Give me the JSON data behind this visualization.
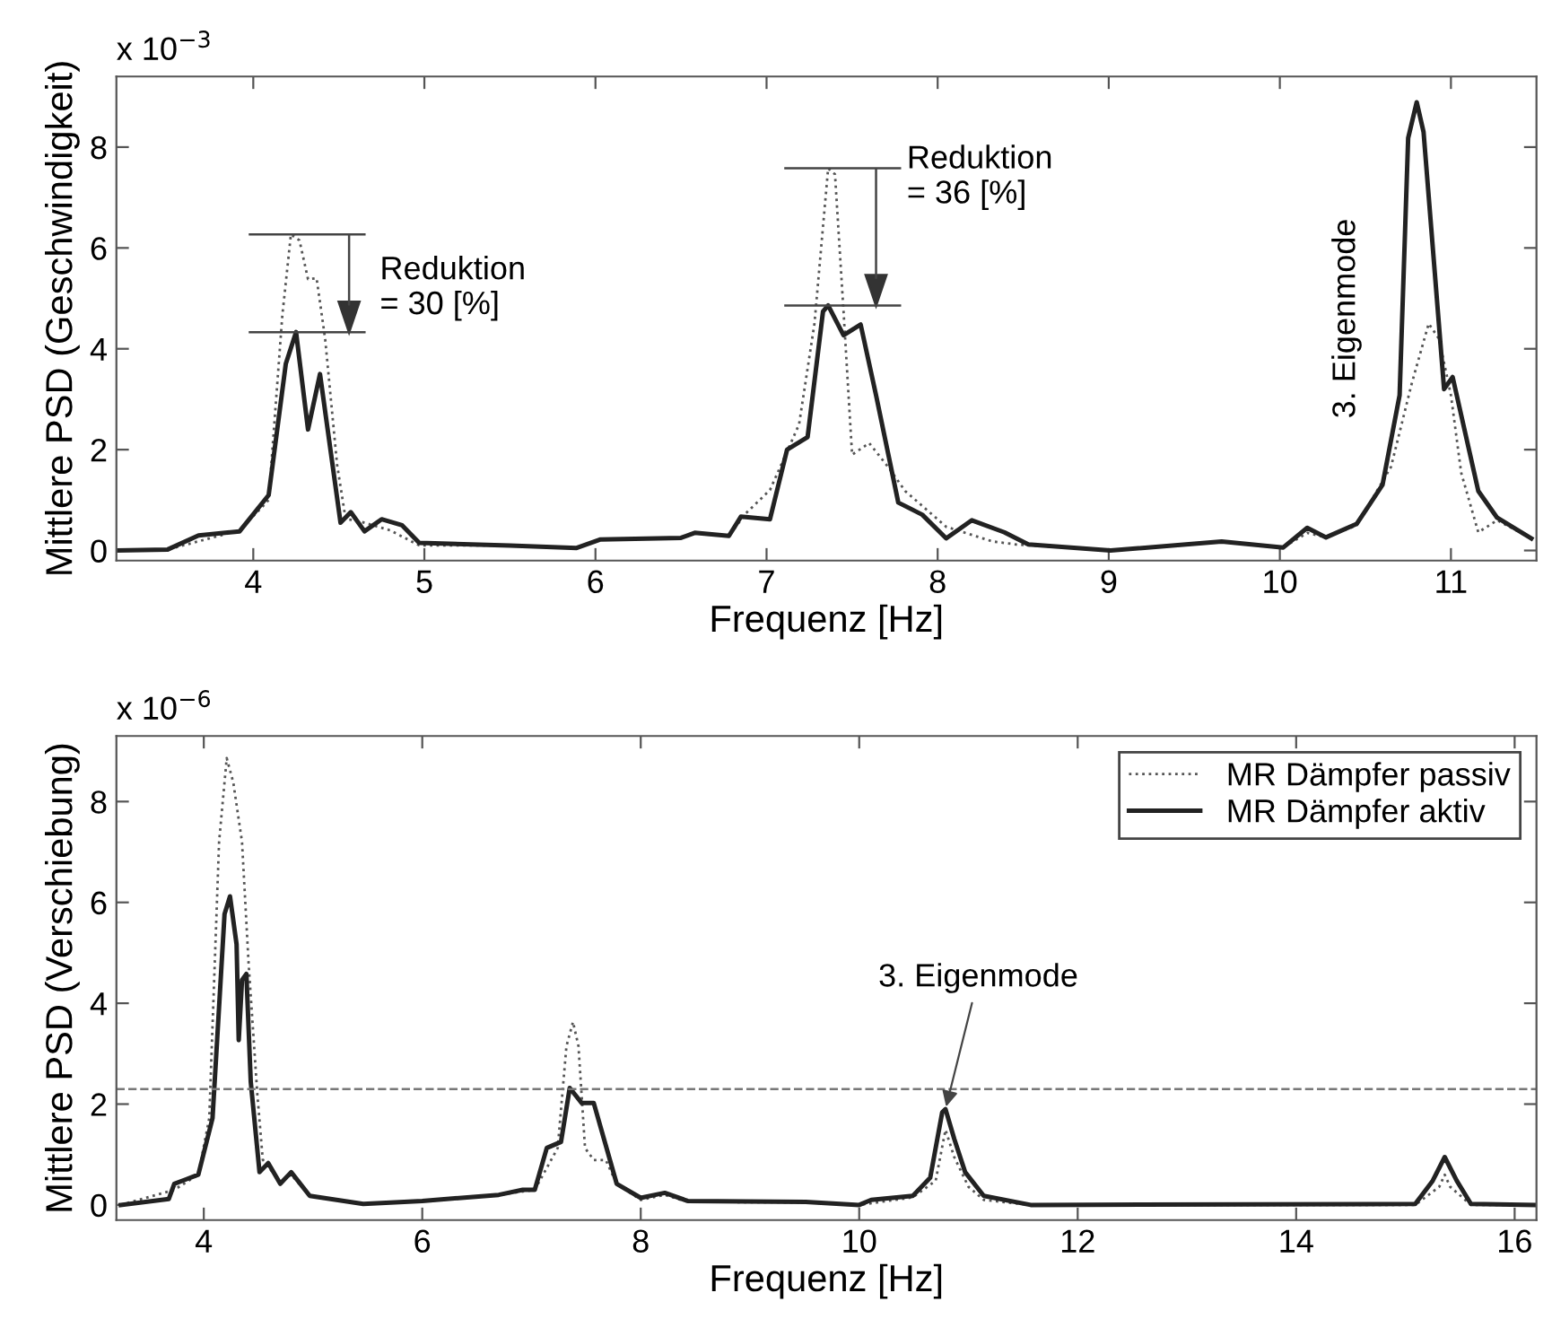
{
  "chart_data": [
    {
      "type": "line",
      "xlabel": "Frequenz [Hz]",
      "ylabel": "Mittlere PSD (Geschwindigkeit)",
      "xlim": [
        3.2,
        11.5
      ],
      "ylim": [
        -0.2,
        9.4
      ],
      "xticks": [
        4,
        5,
        6,
        7,
        8,
        9,
        10,
        11
      ],
      "yticks": [
        0,
        2,
        4,
        6,
        8
      ],
      "grid": false,
      "legend": false,
      "marker": "none",
      "annotations": [
        "x 10$^{−3}$",
        "Reduktion\n= 30 [%]",
        "Reduktion\n= 36 [%]",
        "3. Eigenmode"
      ],
      "series": [
        {
          "color": "#555555",
          "line_style": "dotted",
          "x": [
            3.2,
            3.5,
            3.7,
            3.92,
            4.09,
            4.17,
            4.22,
            4.27,
            4.32,
            4.37,
            4.42,
            4.49,
            4.54,
            4.6,
            4.8,
            4.97,
            5.5,
            5.89,
            6.03,
            6.5,
            6.58,
            6.78,
            6.88,
            7.02,
            7.19,
            7.28,
            7.36,
            7.4,
            7.45,
            7.5,
            7.6,
            7.71,
            7.81,
            8.05,
            8.32,
            8.46,
            9.01,
            9.66,
            10.02,
            10.16,
            10.27,
            10.45,
            10.65,
            10.77,
            10.87,
            10.93,
            11.0,
            11.06,
            11.16,
            11.27,
            11.47
          ],
          "values": [
            0,
            0.02,
            0.2,
            0.4,
            1.0,
            4.67,
            6.27,
            6.15,
            5.38,
            5.4,
            4.2,
            1.7,
            0.62,
            0.6,
            0.4,
            0.1,
            0.1,
            0.05,
            0.22,
            0.25,
            0.35,
            0.29,
            0.74,
            1.2,
            2.5,
            4.5,
            7.58,
            7.46,
            4.74,
            1.9,
            2.13,
            1.66,
            1.18,
            0.47,
            0.18,
            0.12,
            0,
            0.18,
            0.06,
            0.35,
            0.26,
            0.5,
            1.66,
            3.3,
            4.5,
            4.2,
            3.08,
            1.54,
            0.36,
            0.6,
            0.24
          ]
        },
        {
          "color": "#222222",
          "line_style": "solid",
          "x": [
            3.2,
            3.5,
            3.68,
            3.92,
            4.09,
            4.19,
            4.25,
            4.32,
            4.39,
            4.51,
            4.57,
            4.65,
            4.75,
            4.87,
            4.97,
            5.5,
            5.89,
            6.03,
            6.5,
            6.58,
            6.78,
            6.85,
            7.02,
            7.12,
            7.24,
            7.33,
            7.36,
            7.45,
            7.55,
            7.64,
            7.77,
            7.91,
            8.05,
            8.2,
            8.39,
            8.53,
            9.01,
            9.66,
            10.02,
            10.16,
            10.27,
            10.45,
            10.6,
            10.7,
            10.75,
            10.8,
            10.84,
            10.96,
            11.01,
            11.16,
            11.27,
            11.47
          ],
          "values": [
            0,
            0.02,
            0.3,
            0.38,
            1.1,
            3.7,
            4.33,
            2.4,
            3.5,
            0.55,
            0.76,
            0.38,
            0.62,
            0.5,
            0.15,
            0.1,
            0.05,
            0.22,
            0.25,
            0.35,
            0.29,
            0.67,
            0.62,
            2.0,
            2.25,
            4.74,
            4.86,
            4.27,
            4.48,
            3.08,
            0.95,
            0.71,
            0.24,
            0.6,
            0.36,
            0.12,
            0,
            0.18,
            0.06,
            0.45,
            0.26,
            0.53,
            1.3,
            3.08,
            8.18,
            8.89,
            8.3,
            3.2,
            3.44,
            1.18,
            0.65,
            0.24
          ]
        }
      ]
    },
    {
      "type": "line",
      "xlabel": "Frequenz [Hz]",
      "ylabel": "Mittlere PSD (Verschiebung)",
      "xlim": [
        3.2,
        16.2
      ],
      "ylim": [
        -0.3,
        9.3
      ],
      "xticks": [
        4,
        6,
        8,
        10,
        12,
        14,
        16
      ],
      "yticks": [
        0,
        2,
        4,
        6,
        8
      ],
      "grid": false,
      "legend": "top right",
      "marker": "none",
      "ref_lines": [
        {
          "axis": "y",
          "value": 2.3,
          "color": "#777777",
          "line_style": "dashed"
        }
      ],
      "annotations": [
        "x 10$^{−6}$",
        {
          "text": "3. Eigenmode",
          "x": 10.79,
          "y": 1.9
        }
      ],
      "series": [
        {
          "name": "MR Dämpfer passiv",
          "color": "#555555",
          "line_style": "dotted",
          "x": [
            3.24,
            3.73,
            3.95,
            4.05,
            4.14,
            4.21,
            4.27,
            4.35,
            4.41,
            4.49,
            4.54,
            4.7,
            4.8,
            4.97,
            5.46,
            6.0,
            6.7,
            7.03,
            7.24,
            7.32,
            7.38,
            7.43,
            7.49,
            7.57,
            7.68,
            7.78,
            8.0,
            8.22,
            8.43,
            9.51,
            10.0,
            10.49,
            10.7,
            10.79,
            10.87,
            11.0,
            11.14,
            11.57,
            15.09,
            15.31,
            15.36,
            15.41,
            15.6,
            16.2
          ],
          "values": [
            0,
            0.3,
            0.6,
            1.72,
            7.2,
            8.86,
            8.38,
            7.2,
            4.8,
            2.2,
            0.9,
            0.45,
            0.6,
            0.18,
            0.02,
            0.08,
            0.2,
            0.3,
            1.13,
            3.15,
            3.63,
            3.15,
            1.13,
            0.89,
            0.89,
            0.42,
            0.1,
            0.2,
            0.06,
            0.05,
            0,
            0.15,
            0.48,
            1.49,
            0.95,
            0.36,
            0.1,
            0,
            0,
            0.36,
            0.6,
            0.36,
            0,
            0
          ]
        },
        {
          "name": "MR Dämpfer aktiv",
          "color": "#222222",
          "line_style": "solid",
          "x": [
            3.24,
            3.68,
            3.73,
            3.84,
            3.95,
            4.08,
            4.19,
            4.24,
            4.3,
            4.32,
            4.35,
            4.39,
            4.43,
            4.51,
            4.59,
            4.7,
            4.8,
            4.97,
            5.46,
            6.0,
            6.7,
            6.92,
            7.03,
            7.14,
            7.27,
            7.35,
            7.46,
            7.57,
            7.78,
            8.0,
            8.22,
            8.43,
            9.51,
            10.0,
            10.11,
            10.49,
            10.65,
            10.76,
            10.79,
            10.87,
            10.97,
            11.14,
            11.57,
            15.09,
            15.25,
            15.36,
            15.47,
            15.6,
            16.2
          ],
          "values": [
            0,
            0.12,
            0.42,
            0.51,
            0.6,
            1.72,
            5.77,
            6.12,
            5.17,
            3.27,
            4.46,
            4.58,
            2.44,
            0.65,
            0.83,
            0.42,
            0.65,
            0.18,
            0.02,
            0.08,
            0.2,
            0.3,
            0.3,
            1.13,
            1.25,
            2.32,
            2.02,
            2.02,
            0.42,
            0.14,
            0.24,
            0.08,
            0.06,
            0,
            0.1,
            0.18,
            0.54,
            1.84,
            1.9,
            1.31,
            0.65,
            0.18,
            0,
            0.02,
            0.48,
            0.95,
            0.48,
            0.02,
            0
          ]
        }
      ]
    }
  ]
}
